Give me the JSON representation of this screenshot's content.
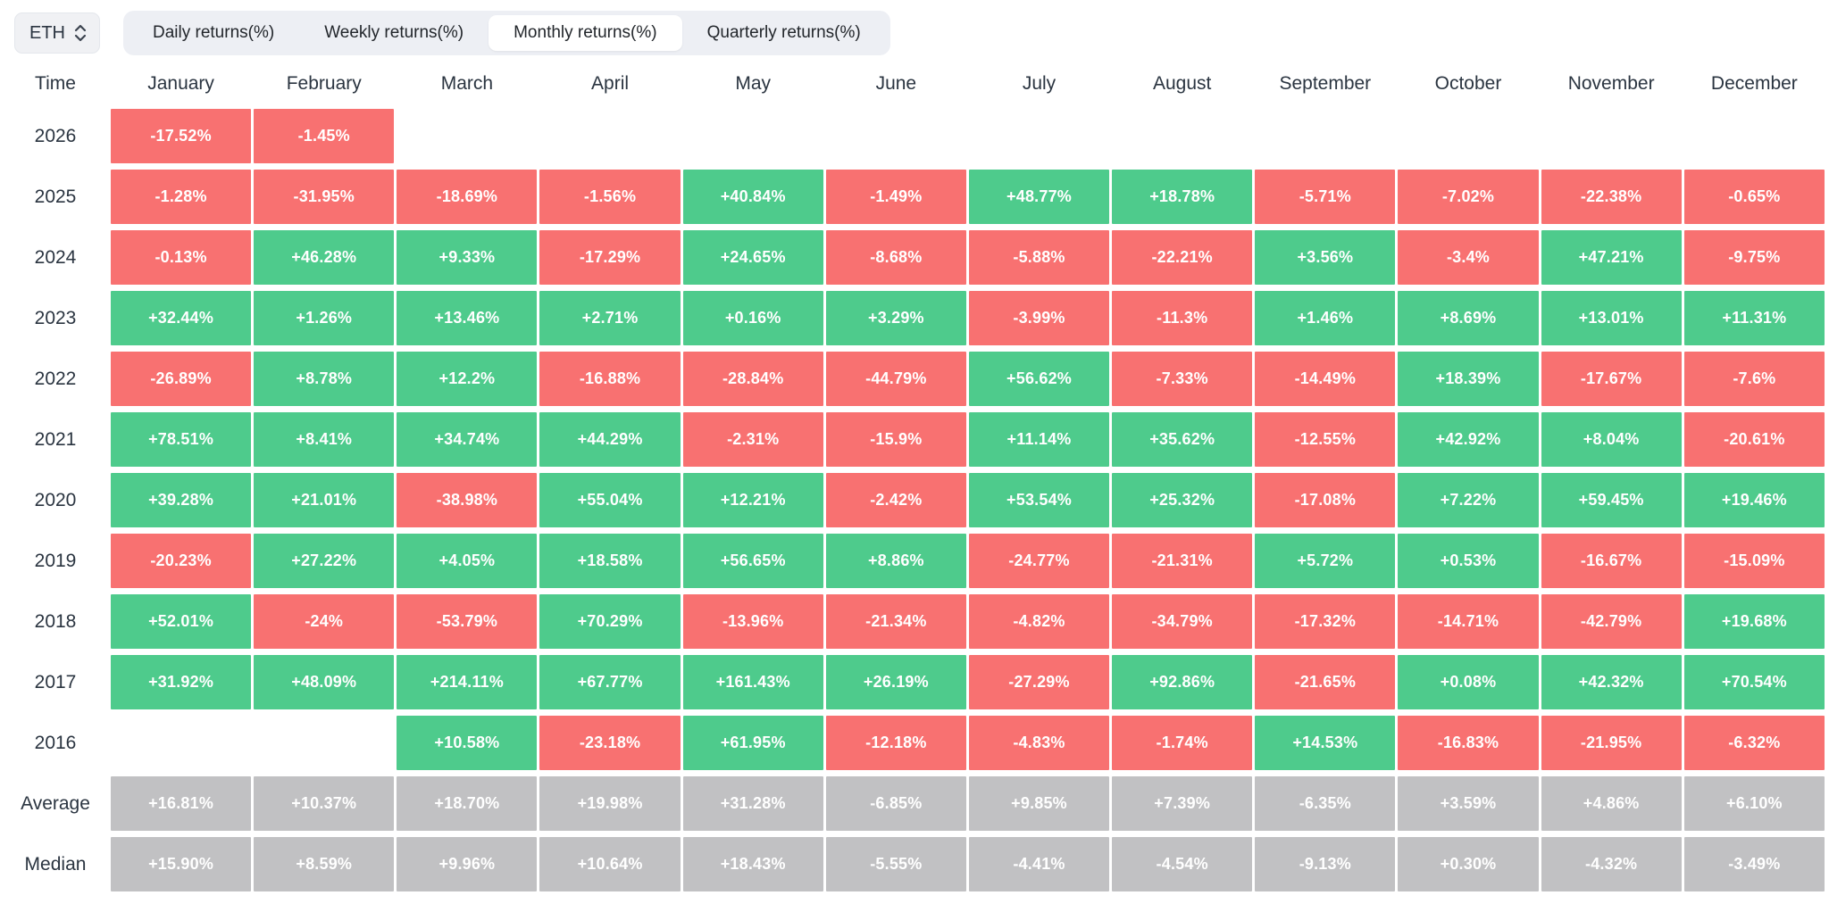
{
  "controls": {
    "symbol": "ETH",
    "tabs": [
      {
        "label": "Daily returns(%)",
        "active": false
      },
      {
        "label": "Weekly returns(%)",
        "active": false
      },
      {
        "label": "Monthly returns(%)",
        "active": true
      },
      {
        "label": "Quarterly returns(%)",
        "active": false
      }
    ]
  },
  "table": {
    "time_header": "Time",
    "months": [
      "January",
      "February",
      "March",
      "April",
      "May",
      "June",
      "July",
      "August",
      "September",
      "October",
      "November",
      "December"
    ],
    "rows": [
      {
        "label": "2026",
        "type": "year",
        "values": [
          "-17.52%",
          "-1.45%",
          "",
          "",
          "",
          "",
          "",
          "",
          "",
          "",
          "",
          ""
        ]
      },
      {
        "label": "2025",
        "type": "year",
        "values": [
          "-1.28%",
          "-31.95%",
          "-18.69%",
          "-1.56%",
          "+40.84%",
          "-1.49%",
          "+48.77%",
          "+18.78%",
          "-5.71%",
          "-7.02%",
          "-22.38%",
          "-0.65%"
        ]
      },
      {
        "label": "2024",
        "type": "year",
        "values": [
          "-0.13%",
          "+46.28%",
          "+9.33%",
          "-17.29%",
          "+24.65%",
          "-8.68%",
          "-5.88%",
          "-22.21%",
          "+3.56%",
          "-3.4%",
          "+47.21%",
          "-9.75%"
        ]
      },
      {
        "label": "2023",
        "type": "year",
        "values": [
          "+32.44%",
          "+1.26%",
          "+13.46%",
          "+2.71%",
          "+0.16%",
          "+3.29%",
          "-3.99%",
          "-11.3%",
          "+1.46%",
          "+8.69%",
          "+13.01%",
          "+11.31%"
        ]
      },
      {
        "label": "2022",
        "type": "year",
        "values": [
          "-26.89%",
          "+8.78%",
          "+12.2%",
          "-16.88%",
          "-28.84%",
          "-44.79%",
          "+56.62%",
          "-7.33%",
          "-14.49%",
          "+18.39%",
          "-17.67%",
          "-7.6%"
        ]
      },
      {
        "label": "2021",
        "type": "year",
        "values": [
          "+78.51%",
          "+8.41%",
          "+34.74%",
          "+44.29%",
          "-2.31%",
          "-15.9%",
          "+11.14%",
          "+35.62%",
          "-12.55%",
          "+42.92%",
          "+8.04%",
          "-20.61%"
        ]
      },
      {
        "label": "2020",
        "type": "year",
        "values": [
          "+39.28%",
          "+21.01%",
          "-38.98%",
          "+55.04%",
          "+12.21%",
          "-2.42%",
          "+53.54%",
          "+25.32%",
          "-17.08%",
          "+7.22%",
          "+59.45%",
          "+19.46%"
        ]
      },
      {
        "label": "2019",
        "type": "year",
        "values": [
          "-20.23%",
          "+27.22%",
          "+4.05%",
          "+18.58%",
          "+56.65%",
          "+8.86%",
          "-24.77%",
          "-21.31%",
          "+5.72%",
          "+0.53%",
          "-16.67%",
          "-15.09%"
        ]
      },
      {
        "label": "2018",
        "type": "year",
        "values": [
          "+52.01%",
          "-24%",
          "-53.79%",
          "+70.29%",
          "-13.96%",
          "-21.34%",
          "-4.82%",
          "-34.79%",
          "-17.32%",
          "-14.71%",
          "-42.79%",
          "+19.68%"
        ]
      },
      {
        "label": "2017",
        "type": "year",
        "values": [
          "+31.92%",
          "+48.09%",
          "+214.11%",
          "+67.77%",
          "+161.43%",
          "+26.19%",
          "-27.29%",
          "+92.86%",
          "-21.65%",
          "+0.08%",
          "+42.32%",
          "+70.54%"
        ]
      },
      {
        "label": "2016",
        "type": "year",
        "values": [
          "",
          "",
          "+10.58%",
          "-23.18%",
          "+61.95%",
          "-12.18%",
          "-4.83%",
          "-1.74%",
          "+14.53%",
          "-16.83%",
          "-21.95%",
          "-6.32%"
        ]
      },
      {
        "label": "Average",
        "type": "summary",
        "values": [
          "+16.81%",
          "+10.37%",
          "+18.70%",
          "+19.98%",
          "+31.28%",
          "-6.85%",
          "+9.85%",
          "+7.39%",
          "-6.35%",
          "+3.59%",
          "+4.86%",
          "+6.10%"
        ]
      },
      {
        "label": "Median",
        "type": "summary",
        "values": [
          "+15.90%",
          "+8.59%",
          "+9.96%",
          "+10.64%",
          "+18.43%",
          "-5.55%",
          "-4.41%",
          "-4.54%",
          "-9.13%",
          "+0.30%",
          "-4.32%",
          "-3.49%"
        ]
      }
    ]
  },
  "colors": {
    "positive": "#4ecb8c",
    "negative": "#f87171",
    "summary": "#c1c1c3"
  }
}
